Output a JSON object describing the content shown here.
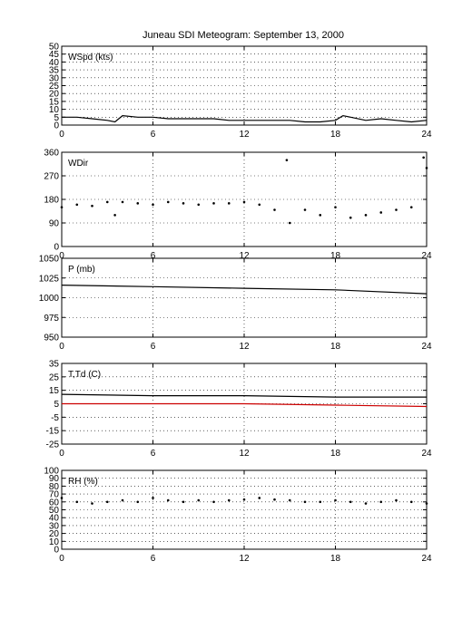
{
  "figure": {
    "title": "Juneau SDI Meteogram: September 13, 2000",
    "background": "#ffffff",
    "x_ticks": [
      0,
      6,
      12,
      18,
      24
    ],
    "xlim": [
      0,
      24
    ]
  },
  "chart_data": [
    {
      "type": "line",
      "panel_label": "WSpd (kts)",
      "xlim": [
        0,
        24
      ],
      "ylim": [
        0,
        50
      ],
      "yticks": [
        0,
        5,
        10,
        15,
        20,
        25,
        30,
        35,
        40,
        45,
        50
      ],
      "grid": "dotted",
      "series": [
        {
          "color": "#000000",
          "x": [
            0,
            1,
            2,
            3,
            3.5,
            4,
            5,
            6,
            7,
            8,
            9,
            10,
            11,
            12,
            13,
            14,
            15,
            16,
            17,
            18,
            18.5,
            19,
            20,
            21,
            22,
            23,
            24
          ],
          "y": [
            5,
            5,
            4,
            3,
            2,
            6,
            5,
            5,
            4,
            4,
            4,
            4,
            3,
            3,
            3,
            3,
            3,
            2,
            2,
            3,
            6,
            5,
            3,
            4,
            3,
            2,
            3
          ]
        }
      ]
    },
    {
      "type": "scatter",
      "panel_label": "WDir",
      "xlim": [
        0,
        24
      ],
      "ylim": [
        0,
        360
      ],
      "yticks": [
        0,
        90,
        180,
        270,
        360
      ],
      "grid": "dotted",
      "series": [
        {
          "color": "#000000",
          "x": [
            0,
            1,
            2,
            3,
            3.5,
            4,
            5,
            6,
            7,
            8,
            9,
            10,
            11,
            12,
            13,
            14,
            14.8,
            15,
            16,
            17,
            18,
            19,
            20,
            21,
            22,
            23,
            23.8,
            24
          ],
          "y": [
            150,
            160,
            155,
            170,
            120,
            170,
            165,
            160,
            170,
            165,
            160,
            165,
            165,
            170,
            160,
            140,
            330,
            90,
            140,
            120,
            150,
            110,
            120,
            130,
            140,
            150,
            340,
            300
          ]
        }
      ]
    },
    {
      "type": "line",
      "panel_label": "P (mb)",
      "xlim": [
        0,
        24
      ],
      "ylim": [
        950,
        1050
      ],
      "yticks": [
        950,
        975,
        1000,
        1025,
        1050
      ],
      "grid": "dotted",
      "series": [
        {
          "color": "#000000",
          "x": [
            0,
            6,
            12,
            18,
            24
          ],
          "y": [
            1016,
            1014,
            1012,
            1010,
            1005
          ]
        }
      ]
    },
    {
      "type": "line",
      "panel_label": "T,Td (C)",
      "xlim": [
        0,
        24
      ],
      "ylim": [
        -25,
        35
      ],
      "yticks": [
        -25,
        -15,
        -5,
        5,
        15,
        25,
        35
      ],
      "grid": "dotted",
      "series": [
        {
          "color": "#000000",
          "x": [
            0,
            6,
            12,
            18,
            24
          ],
          "y": [
            12,
            11,
            11,
            10,
            10
          ]
        },
        {
          "color": "#cc0000",
          "x": [
            0,
            6,
            12,
            18,
            24
          ],
          "y": [
            5,
            5,
            5,
            4,
            3
          ]
        }
      ]
    },
    {
      "type": "scatter",
      "panel_label": "RH (%)",
      "xlim": [
        0,
        24
      ],
      "ylim": [
        0,
        100
      ],
      "yticks": [
        0,
        10,
        20,
        30,
        40,
        50,
        60,
        70,
        80,
        90,
        100
      ],
      "grid": "dotted",
      "series": [
        {
          "color": "#000000",
          "x": [
            0,
            1,
            2,
            3,
            4,
            5,
            6,
            7,
            8,
            9,
            10,
            11,
            12,
            13,
            14,
            15,
            16,
            17,
            18,
            19,
            20,
            21,
            22,
            23,
            24
          ],
          "y": [
            65,
            60,
            58,
            60,
            62,
            60,
            65,
            62,
            60,
            62,
            60,
            62,
            63,
            65,
            63,
            62,
            60,
            60,
            62,
            60,
            58,
            60,
            62,
            60,
            58
          ]
        }
      ]
    }
  ]
}
